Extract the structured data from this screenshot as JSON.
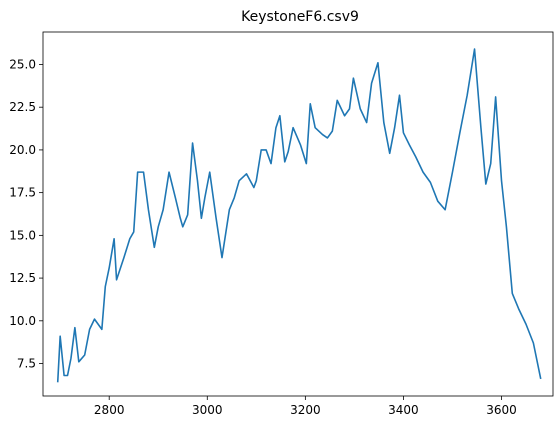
{
  "chart_data": {
    "type": "line",
    "title": "KeystoneF6.csv9",
    "xlabel": "",
    "ylabel": "",
    "xlim": [
      2665,
      3705
    ],
    "ylim": [
      5.6,
      26.9
    ],
    "x_ticks": [
      2800,
      3000,
      3200,
      3400,
      3600
    ],
    "y_ticks": [
      7.5,
      10.0,
      12.5,
      15.0,
      17.5,
      20.0,
      22.5,
      25.0
    ],
    "x_tick_labels": [
      "2800",
      "3000",
      "3200",
      "3400",
      "3600"
    ],
    "y_tick_labels": [
      "7.5",
      "10.0",
      "12.5",
      "15.0",
      "17.5",
      "20.0",
      "22.5",
      "25.0"
    ],
    "grid": false,
    "line_color": "#1f77b4",
    "series": [
      {
        "x": [
          2695,
          2700,
          2708,
          2715,
          2722,
          2730,
          2738,
          2750,
          2760,
          2770,
          2785,
          2792,
          2800,
          2810,
          2815,
          2830,
          2842,
          2850,
          2858,
          2870,
          2880,
          2892,
          2900,
          2910,
          2922,
          2935,
          2945,
          2950,
          2960,
          2970,
          2980,
          2988,
          2995,
          3005,
          3018,
          3030,
          3045,
          3055,
          3065,
          3080,
          3095,
          3100,
          3110,
          3120,
          3130,
          3140,
          3148,
          3158,
          3165,
          3175,
          3190,
          3202,
          3210,
          3220,
          3235,
          3245,
          3255,
          3265,
          3280,
          3290,
          3298,
          3312,
          3325,
          3335,
          3348,
          3360,
          3372,
          3382,
          3392,
          3400,
          3412,
          3425,
          3440,
          3455,
          3470,
          3485,
          3500,
          3515,
          3530,
          3545,
          3558,
          3568,
          3578,
          3588,
          3600,
          3610,
          3622,
          3635,
          3650,
          3665,
          3680
        ],
        "y": [
          6.4,
          9.1,
          6.8,
          6.8,
          7.8,
          9.6,
          7.6,
          8.0,
          9.5,
          10.1,
          9.5,
          12.0,
          13.1,
          14.8,
          12.4,
          13.7,
          14.8,
          15.2,
          18.7,
          18.7,
          16.5,
          14.3,
          15.5,
          16.5,
          18.7,
          17.2,
          16.0,
          15.5,
          16.2,
          20.4,
          18.2,
          16.0,
          17.2,
          18.7,
          16.0,
          13.7,
          16.5,
          17.2,
          18.2,
          18.6,
          17.8,
          18.2,
          20.0,
          20.0,
          19.2,
          21.3,
          22.0,
          19.3,
          19.9,
          21.3,
          20.3,
          19.2,
          22.7,
          21.3,
          20.9,
          20.7,
          21.1,
          22.9,
          22.0,
          22.4,
          24.2,
          22.4,
          21.6,
          23.9,
          25.1,
          21.6,
          19.8,
          21.3,
          23.2,
          21.0,
          20.3,
          19.6,
          18.7,
          18.1,
          17.0,
          16.5,
          18.7,
          21.0,
          23.2,
          25.9,
          21.3,
          18.0,
          19.2,
          23.1,
          18.2,
          15.5,
          11.6,
          10.7,
          9.8,
          8.7,
          6.6
        ]
      }
    ]
  }
}
